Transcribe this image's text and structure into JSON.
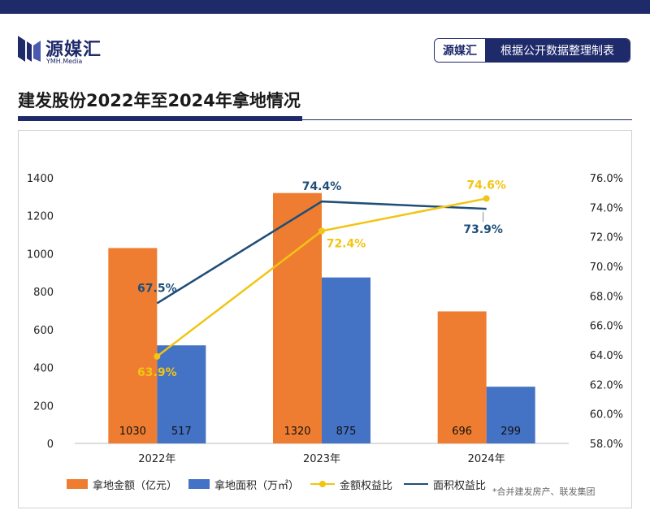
{
  "brand": {
    "name": "源媒汇",
    "sub": "YMH.Media"
  },
  "source_box": {
    "left": "源媒汇",
    "right": "根据公开数据整理制表"
  },
  "footnote": "*合并建发房产、联发集团",
  "colors": {
    "navy": "#1f2a6b",
    "bar_amount": "#ef7d31",
    "bar_area": "#4472c4",
    "line_amount": "#f2c413",
    "line_area": "#1f4e79"
  },
  "chart_data": {
    "type": "bar",
    "title": "建发股份2022年至2024年拿地情况",
    "categories": [
      "2022年",
      "2023年",
      "2024年"
    ],
    "series": [
      {
        "name": "拿地金额（亿元）",
        "type": "bar",
        "axis": "left",
        "values": [
          1030,
          1320,
          696
        ],
        "labels": [
          "1030",
          "1320",
          "696"
        ]
      },
      {
        "name": "拿地面积（万㎡）",
        "type": "bar",
        "axis": "left",
        "values": [
          517,
          875,
          299
        ],
        "labels": [
          "517",
          "875",
          "299"
        ]
      },
      {
        "name": "金额权益比",
        "type": "line",
        "axis": "right",
        "values": [
          63.9,
          72.4,
          74.6
        ],
        "labels": [
          "63.9%",
          "72.4%",
          "74.6%"
        ]
      },
      {
        "name": "面积权益比",
        "type": "line",
        "axis": "right",
        "values": [
          67.5,
          74.4,
          73.9
        ],
        "labels": [
          "67.5%",
          "74.4%",
          "73.9%"
        ]
      }
    ],
    "y_left": {
      "min": 0,
      "max": 1400,
      "ticks": [
        "0",
        "200",
        "400",
        "600",
        "800",
        "1000",
        "1200",
        "1400"
      ]
    },
    "y_right": {
      "min": 58,
      "max": 76,
      "ticks": [
        "58.0%",
        "60.0%",
        "62.0%",
        "64.0%",
        "66.0%",
        "68.0%",
        "70.0%",
        "72.0%",
        "74.0%",
        "76.0%"
      ]
    },
    "grid": false,
    "legend_position": "bottom"
  }
}
